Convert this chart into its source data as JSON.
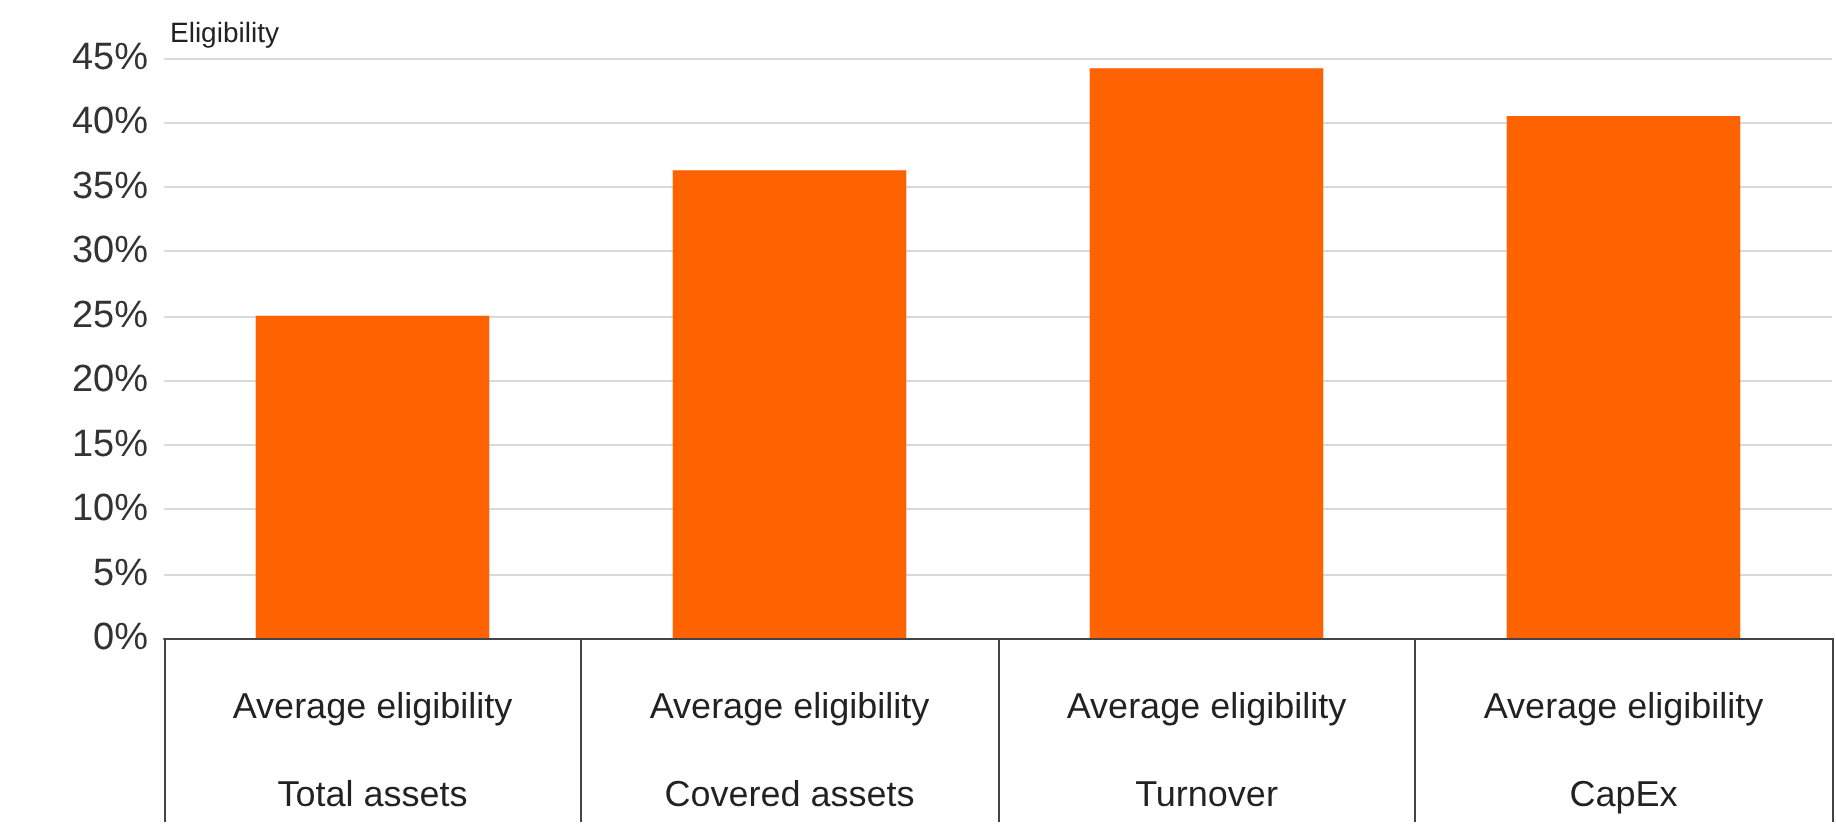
{
  "chart_data": {
    "type": "bar",
    "ylabel": "Eligibility",
    "categories": [
      "Average eligibility\nTotal assets",
      "Average eligibility\nCovered assets",
      "Average eligibility\nTurnover",
      "Average eligibility\nCapEx"
    ],
    "values": [
      25,
      36.3,
      44.2,
      40.5
    ],
    "color": "#ff6200",
    "ylim": [
      0,
      45
    ],
    "yticks": [
      {
        "value": 0,
        "label": "0%"
      },
      {
        "value": 5,
        "label": "5%"
      },
      {
        "value": 10,
        "label": "10%"
      },
      {
        "value": 15,
        "label": "15%"
      },
      {
        "value": 20,
        "label": "20%"
      },
      {
        "value": 25,
        "label": "25%"
      },
      {
        "value": 30,
        "label": "30%"
      },
      {
        "value": 35,
        "label": "35%"
      },
      {
        "value": 40,
        "label": "40%"
      },
      {
        "value": 45,
        "label": "45%"
      }
    ],
    "grid": "y"
  }
}
